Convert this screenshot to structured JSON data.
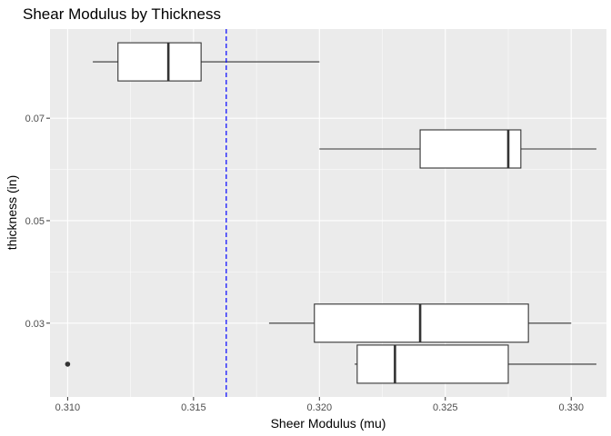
{
  "chart_data": {
    "type": "boxplot",
    "orientation": "horizontal",
    "title": "Shear Modulus by Thickness",
    "xlabel": "Sheer Modulus (mu)",
    "ylabel": "thickness (in)",
    "xlim": [
      0.3093,
      0.3314
    ],
    "ylim": [
      0.0156,
      0.0874
    ],
    "x_ticks": [
      0.31,
      0.315,
      0.32,
      0.325,
      0.33
    ],
    "x_tick_labels": [
      "0.310",
      "0.315",
      "0.320",
      "0.325",
      "0.330"
    ],
    "y_ticks": [
      0.03,
      0.05,
      0.07
    ],
    "y_tick_labels": [
      "0.03",
      "0.05",
      "0.07"
    ],
    "grid": true,
    "reference_line": {
      "x": 0.3163,
      "color": "#0000ff",
      "style": "dashed"
    },
    "boxes": [
      {
        "thickness": 0.022,
        "whisker_low": 0.3214,
        "q1": 0.3215,
        "median": 0.323,
        "q3": 0.3275,
        "whisker_high": 0.331,
        "outliers": [
          0.31
        ]
      },
      {
        "thickness": 0.03,
        "whisker_low": 0.318,
        "q1": 0.3198,
        "median": 0.324,
        "q3": 0.3283,
        "whisker_high": 0.33,
        "outliers": []
      },
      {
        "thickness": 0.064,
        "whisker_low": 0.32,
        "q1": 0.324,
        "median": 0.3275,
        "q3": 0.328,
        "whisker_high": 0.331,
        "outliers": []
      },
      {
        "thickness": 0.081,
        "whisker_low": 0.311,
        "q1": 0.312,
        "median": 0.314,
        "q3": 0.3153,
        "whisker_high": 0.32,
        "outliers": []
      }
    ],
    "colors": {
      "panel_background": "#ebebeb",
      "grid_major": "#ffffff",
      "box_fill": "#ffffff",
      "box_line": "#333333",
      "outlier": "#333333"
    }
  }
}
